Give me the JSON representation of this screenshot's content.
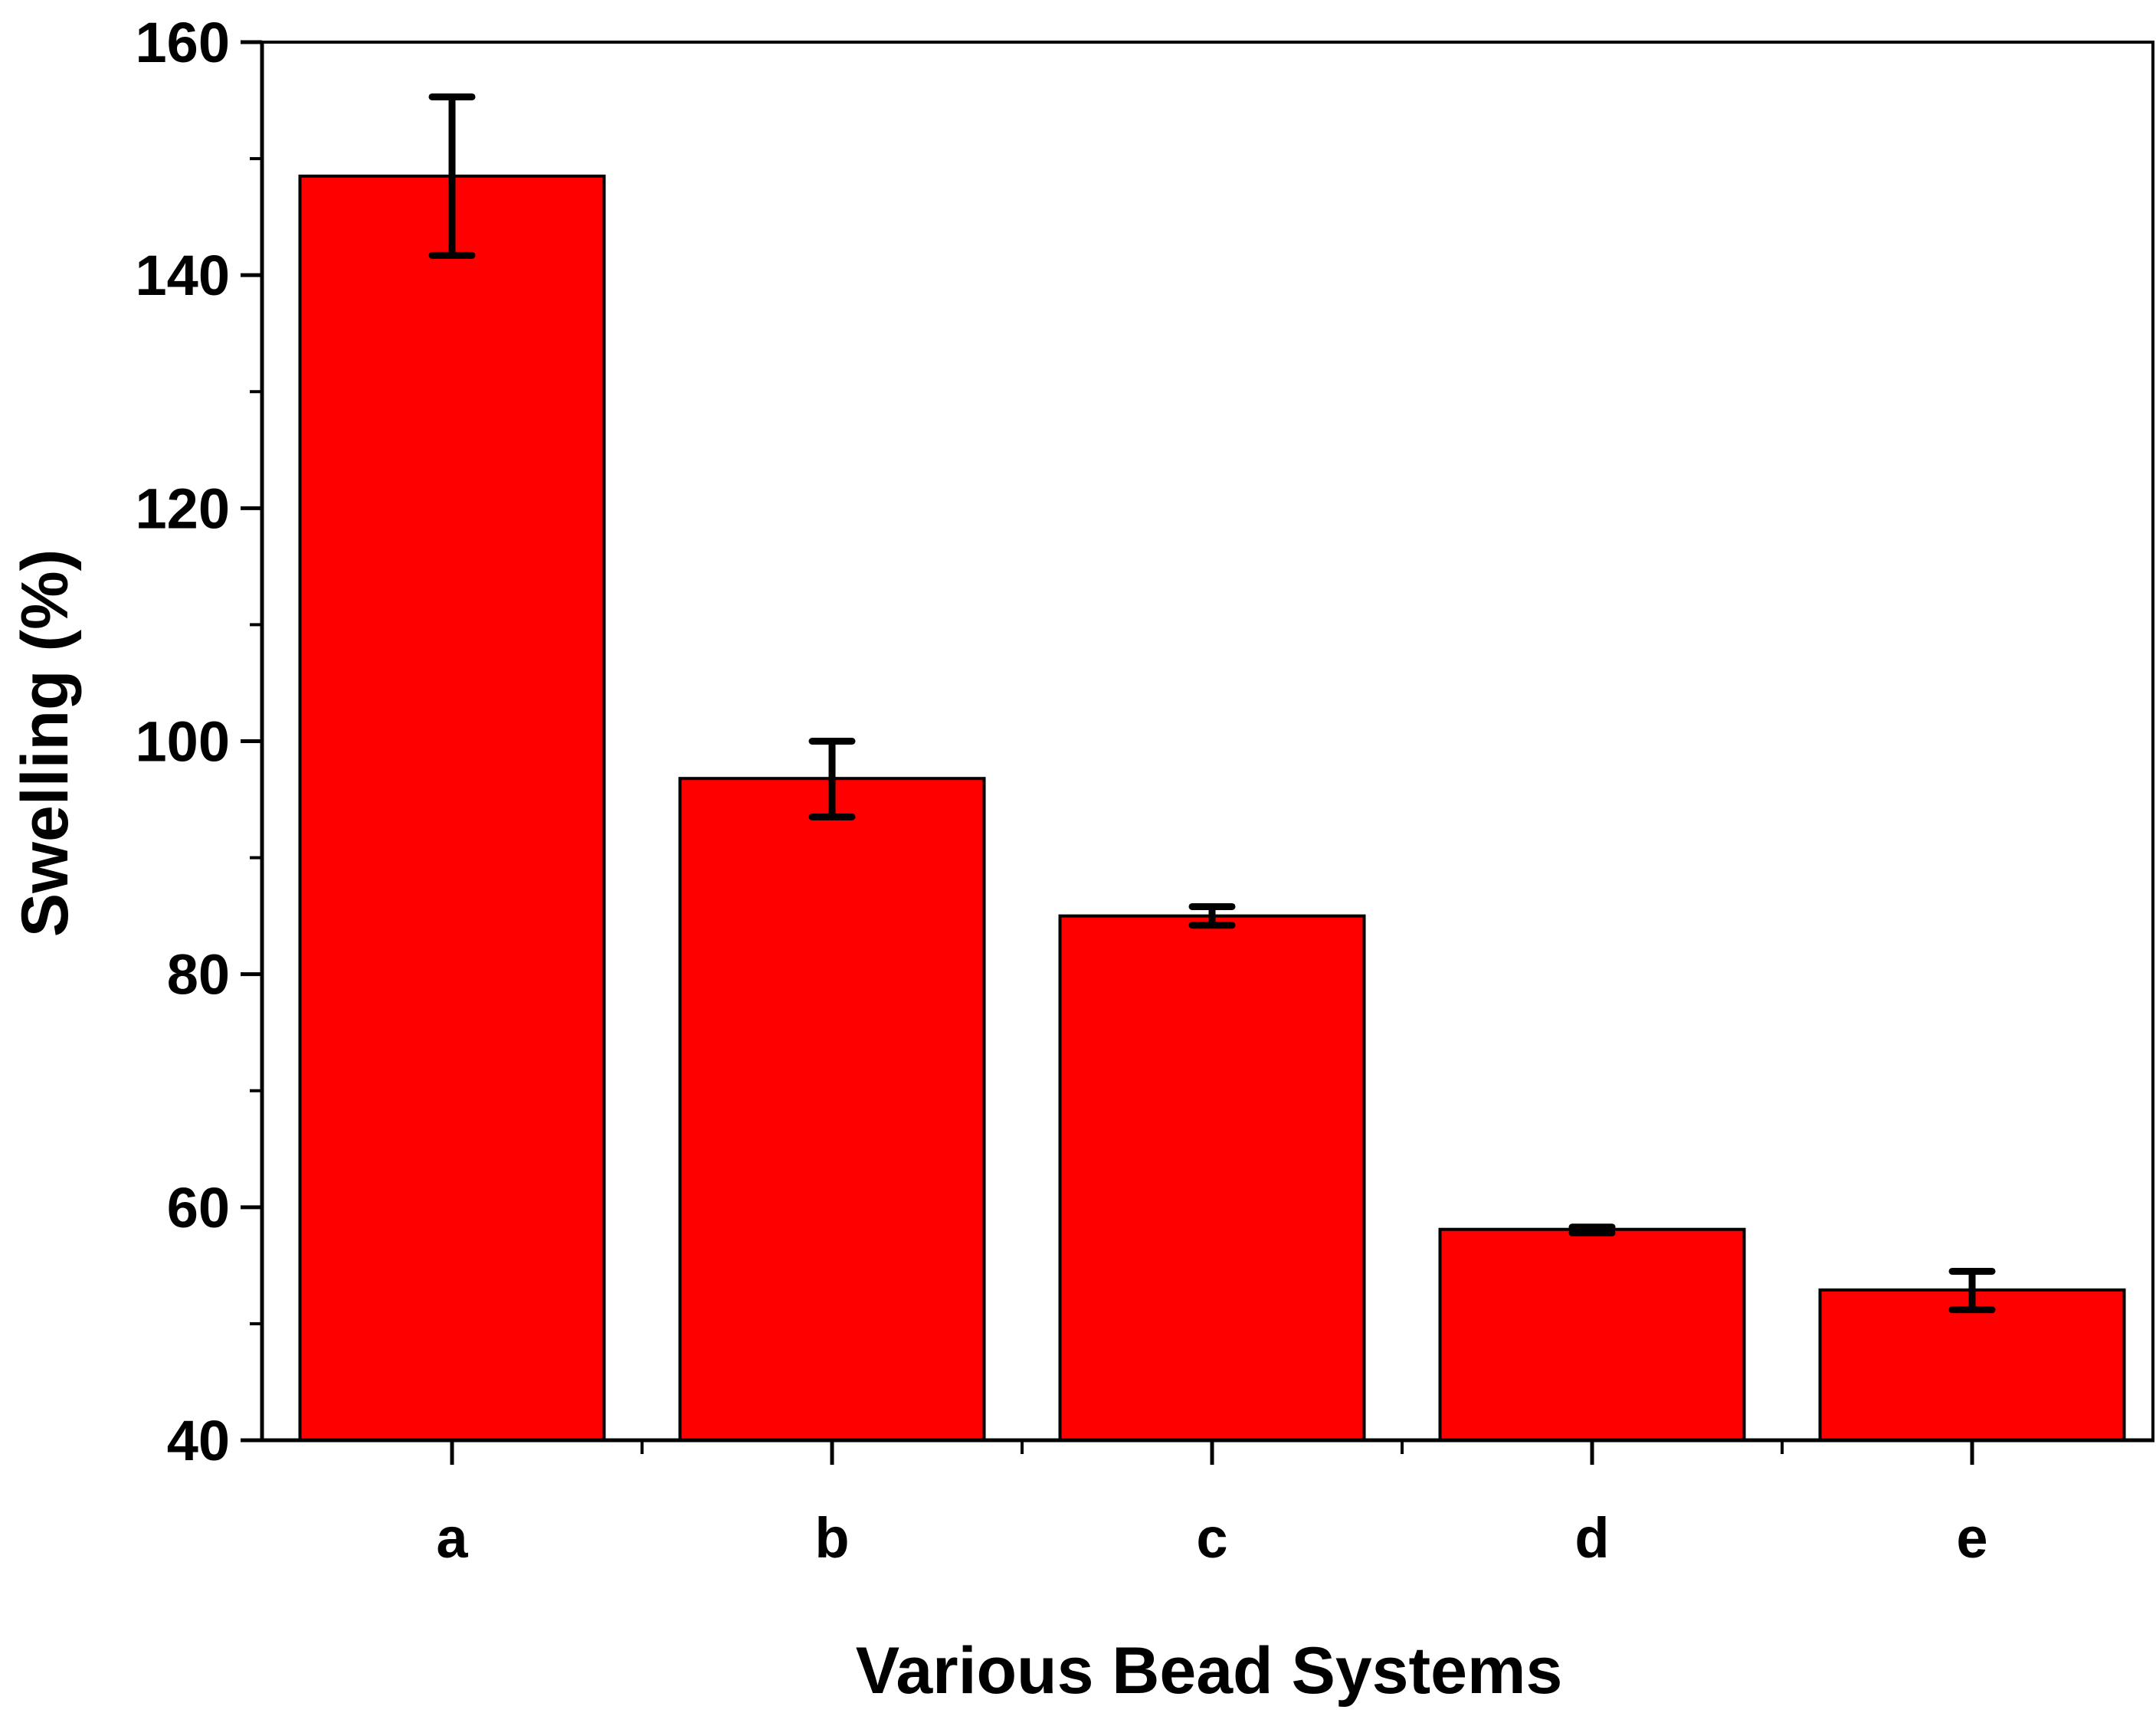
{
  "chart_data": {
    "type": "bar",
    "title": "",
    "xlabel": "Various Bead Systems",
    "ylabel": "Swelling (%)",
    "categories": [
      "a",
      "b",
      "c",
      "d",
      "e"
    ],
    "values": [
      148.5,
      96.8,
      85.0,
      58.1,
      52.9
    ],
    "error_bars": [
      {
        "low": 141.7,
        "high": 155.3
      },
      {
        "low": 93.5,
        "high": 100.0
      },
      {
        "low": 84.2,
        "high": 85.8
      },
      {
        "low": 57.8,
        "high": 58.3
      },
      {
        "low": 51.2,
        "high": 54.5
      }
    ],
    "ylim": [
      40,
      160
    ],
    "yticks": [
      40,
      60,
      80,
      100,
      120,
      140,
      160
    ],
    "ytick_labels": [
      "40",
      "60",
      "80",
      "100",
      "120",
      "140",
      "160"
    ],
    "y_minor_step": 10,
    "grid": false,
    "legend": "none",
    "colors": {
      "bar_fill": "#ff0000",
      "bar_stroke": "#000000",
      "error_bar": "#000000",
      "axis": "#000000"
    }
  }
}
